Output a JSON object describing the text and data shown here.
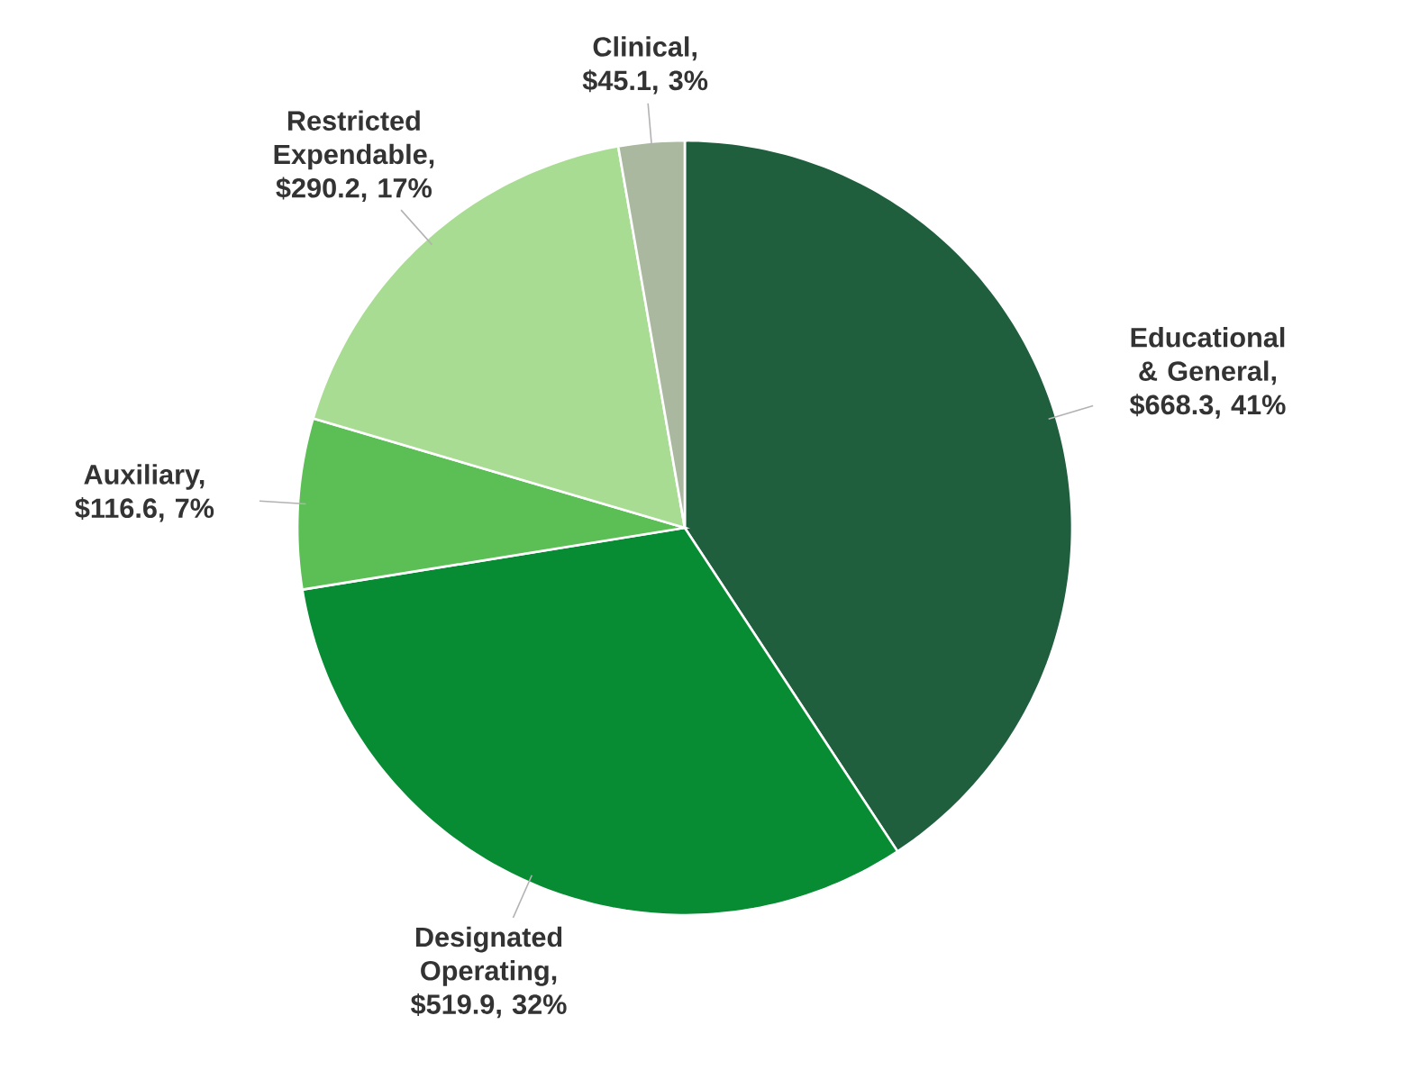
{
  "chart_data": {
    "type": "pie",
    "categories": [
      "Educational & General, $668.3, 41%",
      "Designated Operating, $519.9, 32%",
      "Auxiliary, $116.6, 7%",
      "Restricted Expendable, $290.2, 17%",
      "Clinical, $45.1, 3%"
    ],
    "values": [
      668.3,
      519.9,
      116.6,
      290.2,
      45.1
    ],
    "colors": [
      "#1f5f3d",
      "#078c33",
      "#5cbf55",
      "#a8dc92",
      "#a9b89e"
    ]
  }
}
